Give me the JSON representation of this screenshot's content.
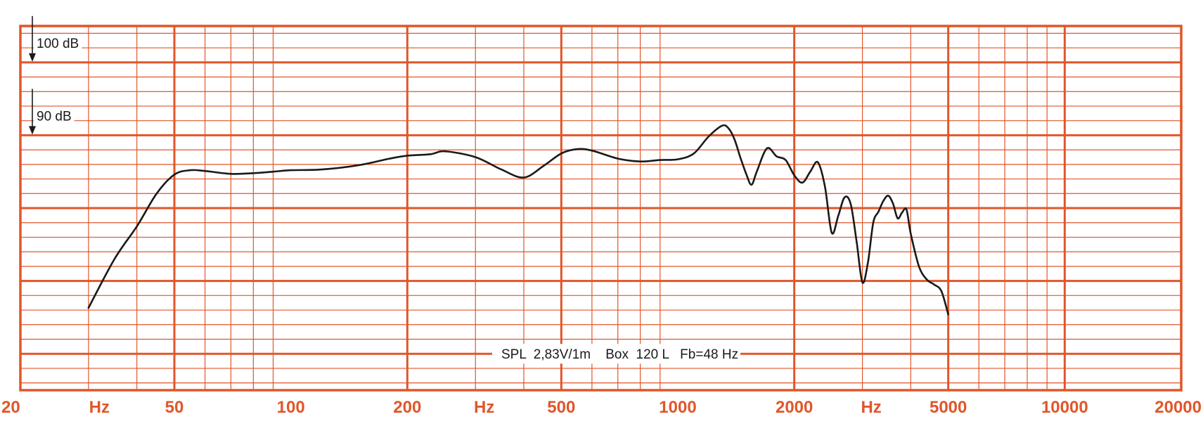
{
  "chart_data": {
    "type": "line",
    "title": "",
    "xlabel": "",
    "ylabel": "",
    "x_scale": "log",
    "xlim": [
      20,
      20000
    ],
    "ylim": [
      55,
      105
    ],
    "grid": true,
    "x_tick_labels": [
      "20",
      "Hz",
      "50",
      "100",
      "200",
      "Hz",
      "500",
      "1000",
      "2000",
      "Hz",
      "5000",
      "10000",
      "20000"
    ],
    "reference_marks": [
      {
        "label": "100 dB",
        "value": 100
      },
      {
        "label": "90 dB",
        "value": 90
      }
    ],
    "annotation": "SPL  2,83V/1m    Box  120 L   Fb=48 Hz",
    "colors": {
      "grid": "#E0562A",
      "curve": "#1a1a1a",
      "tick_labels": "#E0562A"
    },
    "series": [
      {
        "x": [
          30,
          35,
          40,
          45,
          50,
          55,
          60,
          70,
          80,
          90,
          100,
          120,
          150,
          180,
          200,
          230,
          250,
          300,
          350,
          400,
          450,
          500,
          550,
          600,
          700,
          800,
          900,
          1000,
          1100,
          1200,
          1300,
          1350,
          1400,
          1450,
          1500,
          1550,
          1600,
          1700,
          1800,
          1900,
          2000,
          2100,
          2200,
          2300,
          2400,
          2500,
          2600,
          2700,
          2800,
          2900,
          3000,
          3100,
          3200,
          3300,
          3400,
          3500,
          3600,
          3700,
          3800,
          3900,
          4000,
          4200,
          4400,
          4600,
          4800,
          5000
        ],
        "y": [
          66.3,
          73,
          77.5,
          82,
          84.6,
          85.2,
          85.1,
          84.7,
          84.8,
          85,
          85.2,
          85.3,
          85.9,
          86.8,
          87.2,
          87.4,
          87.8,
          87,
          85.3,
          84.2,
          85.8,
          87.5,
          88.1,
          87.9,
          86.8,
          86.4,
          86.6,
          86.7,
          87.5,
          89.8,
          91.3,
          91,
          89.5,
          87,
          84.8,
          83.2,
          85,
          88.2,
          87.1,
          86.6,
          84.5,
          83.5,
          85,
          86.3,
          83,
          76.6,
          79,
          81.5,
          80.5,
          75.3,
          69.8,
          72.5,
          78,
          79.5,
          81,
          81.7,
          80.6,
          78.6,
          79.4,
          79.8,
          76.5,
          72,
          70.2,
          69.5,
          68.6,
          65.4
        ]
      }
    ]
  }
}
